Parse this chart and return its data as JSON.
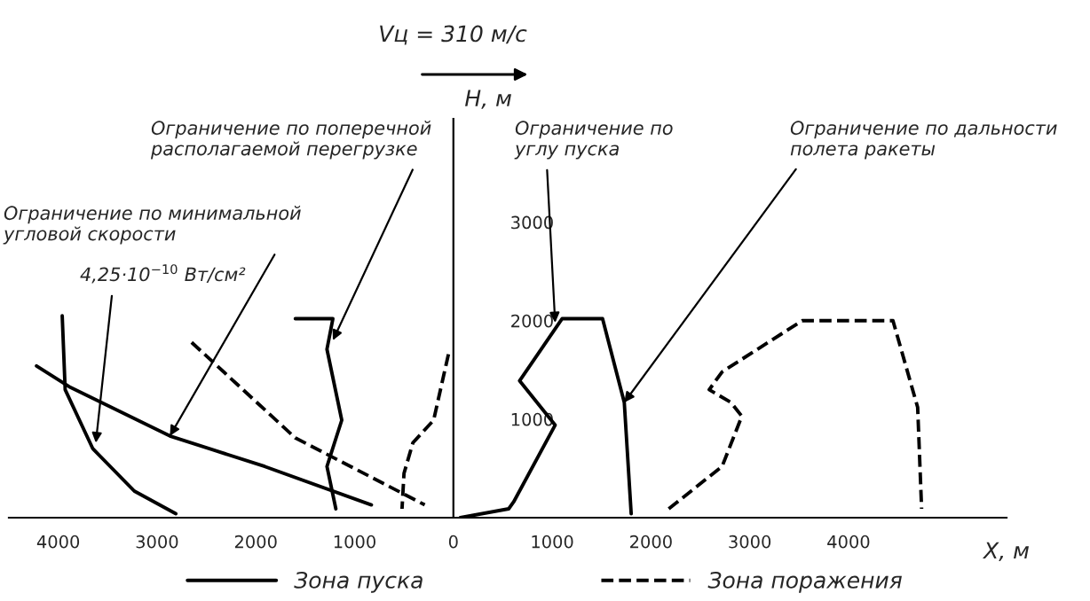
{
  "chart_data": {
    "type": "line",
    "xlabel": "X, м",
    "ylabel": "H, м",
    "xlim": [
      -4500,
      5600
    ],
    "ylim": [
      0,
      4050
    ],
    "xticks": [
      {
        "value": -4000,
        "label": "4000"
      },
      {
        "value": -3000,
        "label": "3000"
      },
      {
        "value": -2000,
        "label": "2000"
      },
      {
        "value": -1000,
        "label": "1000"
      },
      0,
      1000,
      2000,
      3000,
      4000
    ],
    "yticks": [
      1000,
      2000,
      3000
    ],
    "legend": "bottom",
    "series": [
      {
        "name": "Зона пуска",
        "color": "#000000",
        "line_style": "solid",
        "x": [
          -4220,
          -3890,
          -2870,
          -1910,
          -830
        ],
        "values": [
          1540,
          1330,
          830,
          520,
          130
        ]
      },
      {
        "color": "#000000",
        "line_style": "solid",
        "x": [
          -3960,
          -3930,
          -3650,
          -3230,
          -2810
        ],
        "values": [
          2050,
          1300,
          700,
          270,
          40
        ]
      },
      {
        "color": "#000000",
        "line_style": "solid",
        "x": [
          -1600,
          -1220,
          -1280,
          -1130,
          -1280,
          -1190
        ],
        "values": [
          2020,
          2020,
          1710,
          990,
          520,
          90
        ]
      },
      {
        "color": "#000000",
        "line_style": "solid",
        "x": [
          70,
          560,
          610,
          1030,
          670,
          1100,
          1510,
          1730,
          1800
        ],
        "values": [
          0,
          90,
          160,
          940,
          1390,
          2020,
          2020,
          1170,
          40
        ]
      },
      {
        "name": "Зона поражения",
        "color": "#000000",
        "line_style": "dashed",
        "x": [
          -2650,
          -1600,
          -290
        ],
        "values": [
          1780,
          810,
          130
        ]
      },
      {
        "color": "#000000",
        "line_style": "dashed",
        "x": [
          -50,
          -200,
          -410,
          -500,
          -520
        ],
        "values": [
          1660,
          990,
          760,
          450,
          90
        ]
      },
      {
        "color": "#000000",
        "line_style": "dashed",
        "x": [
          2180,
          2720,
          2920,
          2810,
          2590,
          2720,
          3530,
          4450,
          4700,
          4740
        ],
        "values": [
          90,
          520,
          1030,
          1170,
          1300,
          1480,
          2000,
          2000,
          1120,
          90
        ]
      }
    ],
    "annotations": [
      "Vц = 310 м/с",
      {
        "text": "Ограничение по минимальной\nугловой скорости",
        "x": -2870,
        "y": 830
      },
      {
        "text": "4,25·10$^{−10}$ Вт/см²",
        "x": -3620,
        "y": 760
      },
      {
        "text": "Ограничение по поперечной\nрасполагаемой перегрузке",
        "x": -1220,
        "y": 1800
      },
      {
        "text": "Ограничение по\nуглу пуска",
        "x": 1030,
        "y": 1980
      },
      {
        "text": "Ограничение по дальности\nполета ракеты",
        "x": 1730,
        "y": 1170
      }
    ]
  }
}
